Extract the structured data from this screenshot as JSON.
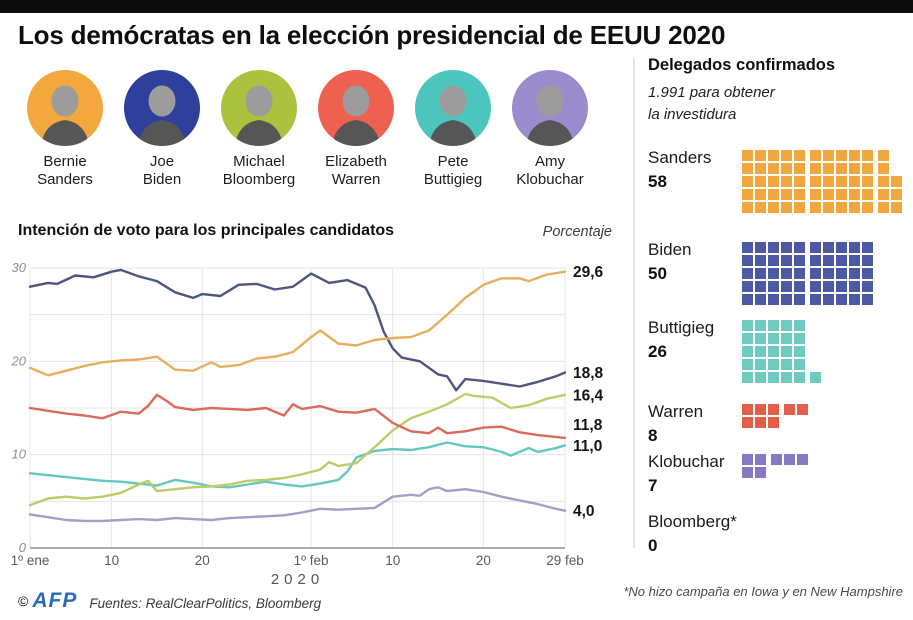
{
  "page": {
    "title": "Los demócratas en la elección presidencial de EEUU 2020"
  },
  "candidates": [
    {
      "first": "Bernie",
      "last": "Sanders",
      "color": "#f3a73c"
    },
    {
      "first": "Joe",
      "last": "Biden",
      "color": "#2e3f9c"
    },
    {
      "first": "Michael",
      "last": "Bloomberg",
      "color": "#abc23f"
    },
    {
      "first": "Elizabeth",
      "last": "Warren",
      "color": "#ee6150"
    },
    {
      "first": "Pete",
      "last": "Buttigieg",
      "color": "#4cc5bf"
    },
    {
      "first": "Amy",
      "last": "Klobuchar",
      "color": "#9a8ccc"
    }
  ],
  "chart_data": {
    "type": "line",
    "title": "Intención de voto para los principales candidatos",
    "unit_label": "Porcentaje",
    "x_axis": {
      "ticks": [
        {
          "day": 0,
          "label": "1º ene"
        },
        {
          "day": 9,
          "label": "10"
        },
        {
          "day": 19,
          "label": "20"
        },
        {
          "day": 31,
          "label": "1º feb"
        },
        {
          "day": 40,
          "label": "10"
        },
        {
          "day": 50,
          "label": "20"
        },
        {
          "day": 59,
          "label": "29 feb"
        }
      ],
      "year_label": "2020",
      "range_days": [
        0,
        59
      ]
    },
    "y_axis": {
      "ticks": [
        0,
        10,
        20,
        30
      ],
      "grid_every": 5,
      "max": 30
    },
    "series": [
      {
        "name": "Klobuchar",
        "color": "#a89cc8",
        "end_label": "4,0",
        "points": [
          [
            0,
            3.6
          ],
          [
            2,
            3.3
          ],
          [
            4,
            3.0
          ],
          [
            6,
            2.9
          ],
          [
            8,
            2.9
          ],
          [
            10,
            3.0
          ],
          [
            12,
            3.1
          ],
          [
            14,
            3.0
          ],
          [
            16,
            3.2
          ],
          [
            18,
            3.1
          ],
          [
            20,
            3.0
          ],
          [
            22,
            3.2
          ],
          [
            24,
            3.3
          ],
          [
            26,
            3.4
          ],
          [
            28,
            3.5
          ],
          [
            30,
            3.8
          ],
          [
            32,
            4.2
          ],
          [
            34,
            4.1
          ],
          [
            36,
            4.2
          ],
          [
            38,
            4.3
          ],
          [
            40,
            5.5
          ],
          [
            42,
            5.7
          ],
          [
            43,
            5.6
          ],
          [
            44,
            6.3
          ],
          [
            45,
            6.5
          ],
          [
            46,
            6.1
          ],
          [
            48,
            6.3
          ],
          [
            50,
            6.0
          ],
          [
            52,
            5.5
          ],
          [
            54,
            5.1
          ],
          [
            56,
            4.7
          ],
          [
            58,
            4.2
          ],
          [
            59,
            4.0
          ]
        ]
      },
      {
        "name": "Buttigieg",
        "color": "#66c7bd",
        "end_label": "11,0",
        "points": [
          [
            0,
            8.0
          ],
          [
            2,
            7.8
          ],
          [
            4,
            7.6
          ],
          [
            6,
            7.4
          ],
          [
            8,
            7.2
          ],
          [
            10,
            7.1
          ],
          [
            12,
            6.9
          ],
          [
            14,
            6.7
          ],
          [
            16,
            7.3
          ],
          [
            18,
            7.0
          ],
          [
            20,
            6.6
          ],
          [
            22,
            6.5
          ],
          [
            24,
            6.8
          ],
          [
            26,
            7.1
          ],
          [
            28,
            6.8
          ],
          [
            30,
            6.6
          ],
          [
            32,
            6.9
          ],
          [
            34,
            7.3
          ],
          [
            35,
            8.2
          ],
          [
            36,
            9.7
          ],
          [
            38,
            10.4
          ],
          [
            40,
            10.6
          ],
          [
            42,
            10.5
          ],
          [
            44,
            10.8
          ],
          [
            46,
            11.3
          ],
          [
            48,
            10.9
          ],
          [
            50,
            10.8
          ],
          [
            52,
            10.3
          ],
          [
            53,
            9.9
          ],
          [
            55,
            10.7
          ],
          [
            56,
            10.3
          ],
          [
            58,
            10.7
          ],
          [
            59,
            11.0
          ]
        ]
      },
      {
        "name": "Bloomberg",
        "color": "#bccc68",
        "end_label": "16,4",
        "points": [
          [
            0,
            4.6
          ],
          [
            2,
            5.3
          ],
          [
            4,
            5.5
          ],
          [
            6,
            5.3
          ],
          [
            8,
            5.5
          ],
          [
            10,
            5.9
          ],
          [
            12,
            6.8
          ],
          [
            13,
            7.2
          ],
          [
            14,
            6.1
          ],
          [
            16,
            6.3
          ],
          [
            18,
            6.5
          ],
          [
            20,
            6.6
          ],
          [
            22,
            6.8
          ],
          [
            24,
            7.2
          ],
          [
            26,
            7.3
          ],
          [
            28,
            7.5
          ],
          [
            30,
            7.9
          ],
          [
            32,
            8.4
          ],
          [
            33,
            9.2
          ],
          [
            34,
            8.8
          ],
          [
            36,
            9.1
          ],
          [
            38,
            10.8
          ],
          [
            40,
            12.6
          ],
          [
            42,
            13.9
          ],
          [
            44,
            14.6
          ],
          [
            46,
            15.4
          ],
          [
            48,
            16.5
          ],
          [
            49,
            16.3
          ],
          [
            51,
            16.1
          ],
          [
            53,
            15.0
          ],
          [
            55,
            15.3
          ],
          [
            57,
            16.0
          ],
          [
            59,
            16.4
          ]
        ]
      },
      {
        "name": "Warren",
        "color": "#d96a5c",
        "end_label": "11,8",
        "points": [
          [
            0,
            15.0
          ],
          [
            2,
            14.7
          ],
          [
            4,
            14.4
          ],
          [
            6,
            14.2
          ],
          [
            8,
            13.9
          ],
          [
            10,
            14.6
          ],
          [
            12,
            14.4
          ],
          [
            13,
            15.2
          ],
          [
            14,
            16.4
          ],
          [
            15,
            15.8
          ],
          [
            16,
            15.1
          ],
          [
            18,
            14.8
          ],
          [
            20,
            15.0
          ],
          [
            22,
            14.9
          ],
          [
            24,
            14.8
          ],
          [
            26,
            15.0
          ],
          [
            28,
            14.2
          ],
          [
            29,
            15.4
          ],
          [
            30,
            14.9
          ],
          [
            32,
            15.2
          ],
          [
            34,
            14.6
          ],
          [
            36,
            14.5
          ],
          [
            38,
            14.9
          ],
          [
            40,
            13.4
          ],
          [
            42,
            12.5
          ],
          [
            44,
            12.3
          ],
          [
            45,
            12.9
          ],
          [
            46,
            12.3
          ],
          [
            48,
            12.5
          ],
          [
            50,
            12.9
          ],
          [
            52,
            13.0
          ],
          [
            54,
            12.4
          ],
          [
            56,
            12.1
          ],
          [
            59,
            11.8
          ]
        ]
      },
      {
        "name": "Biden",
        "color": "#4b5781",
        "end_label": "18,8",
        "points": [
          [
            0,
            28.0
          ],
          [
            2,
            28.4
          ],
          [
            3,
            28.3
          ],
          [
            5,
            29.2
          ],
          [
            7,
            29.0
          ],
          [
            9,
            29.6
          ],
          [
            10,
            29.8
          ],
          [
            12,
            29.1
          ],
          [
            14,
            28.6
          ],
          [
            16,
            27.4
          ],
          [
            18,
            26.8
          ],
          [
            19,
            27.2
          ],
          [
            21,
            27.0
          ],
          [
            23,
            28.2
          ],
          [
            25,
            28.3
          ],
          [
            27,
            27.7
          ],
          [
            29,
            28.0
          ],
          [
            31,
            29.4
          ],
          [
            33,
            28.4
          ],
          [
            35,
            28.7
          ],
          [
            37,
            27.9
          ],
          [
            38,
            26.0
          ],
          [
            39,
            23.2
          ],
          [
            40,
            21.4
          ],
          [
            41,
            20.4
          ],
          [
            43,
            20.0
          ],
          [
            45,
            18.6
          ],
          [
            46,
            18.4
          ],
          [
            47,
            16.9
          ],
          [
            48,
            18.1
          ],
          [
            50,
            17.9
          ],
          [
            52,
            17.6
          ],
          [
            54,
            17.3
          ],
          [
            56,
            17.8
          ],
          [
            58,
            18.4
          ],
          [
            59,
            18.8
          ]
        ]
      },
      {
        "name": "Sanders",
        "color": "#e9ad5e",
        "end_label": "29,6",
        "points": [
          [
            0,
            19.3
          ],
          [
            2,
            18.5
          ],
          [
            4,
            19.0
          ],
          [
            6,
            19.5
          ],
          [
            8,
            19.9
          ],
          [
            10,
            20.1
          ],
          [
            12,
            20.2
          ],
          [
            14,
            20.5
          ],
          [
            16,
            19.1
          ],
          [
            18,
            19.0
          ],
          [
            20,
            19.9
          ],
          [
            21,
            19.4
          ],
          [
            23,
            19.6
          ],
          [
            25,
            20.3
          ],
          [
            27,
            20.5
          ],
          [
            29,
            21.0
          ],
          [
            31,
            22.6
          ],
          [
            32,
            23.3
          ],
          [
            34,
            21.9
          ],
          [
            36,
            21.7
          ],
          [
            38,
            22.3
          ],
          [
            40,
            22.5
          ],
          [
            42,
            22.6
          ],
          [
            44,
            23.3
          ],
          [
            46,
            25.0
          ],
          [
            48,
            26.8
          ],
          [
            50,
            28.2
          ],
          [
            52,
            28.9
          ],
          [
            54,
            28.9
          ],
          [
            55,
            28.6
          ],
          [
            57,
            29.3
          ],
          [
            59,
            29.6
          ]
        ]
      }
    ]
  },
  "delegates": {
    "heading": "Delegados confirmados",
    "subheading_line1": "1.991 para obtener",
    "subheading_line2": "la investidura",
    "items": [
      {
        "name": "Sanders",
        "count": "58",
        "color": "#f2a73e",
        "rows": [
          11,
          11,
          12,
          12,
          12
        ],
        "col_gaps": [
          5,
          10
        ]
      },
      {
        "name": "Biden",
        "count": "50",
        "color": "#4d59a3",
        "rows": [
          10,
          10,
          10,
          10,
          10
        ],
        "col_gaps": [
          5
        ]
      },
      {
        "name": "Buttigieg",
        "count": "26",
        "color": "#6fcabf",
        "rows": [
          5,
          5,
          5,
          5,
          6
        ],
        "col_gaps": [
          5
        ]
      },
      {
        "name": "Warren",
        "count": "8",
        "color": "#e65c4a",
        "rows": [
          5,
          3
        ],
        "col_gaps": [
          3
        ]
      },
      {
        "name": "Klobuchar",
        "count": "7",
        "color": "#8678c1",
        "rows": [
          5,
          2
        ],
        "col_gaps": [
          2
        ]
      },
      {
        "name": "Bloomberg*",
        "count": "0",
        "color": "#abc23f",
        "rows": [],
        "col_gaps": []
      }
    ],
    "footnote": "*No hizo campaña en Iowa y en New Hampshire"
  },
  "footer": {
    "copyright": "©",
    "logo": "AFP",
    "sources": "Fuentes: RealClearPolitics, Bloomberg"
  }
}
